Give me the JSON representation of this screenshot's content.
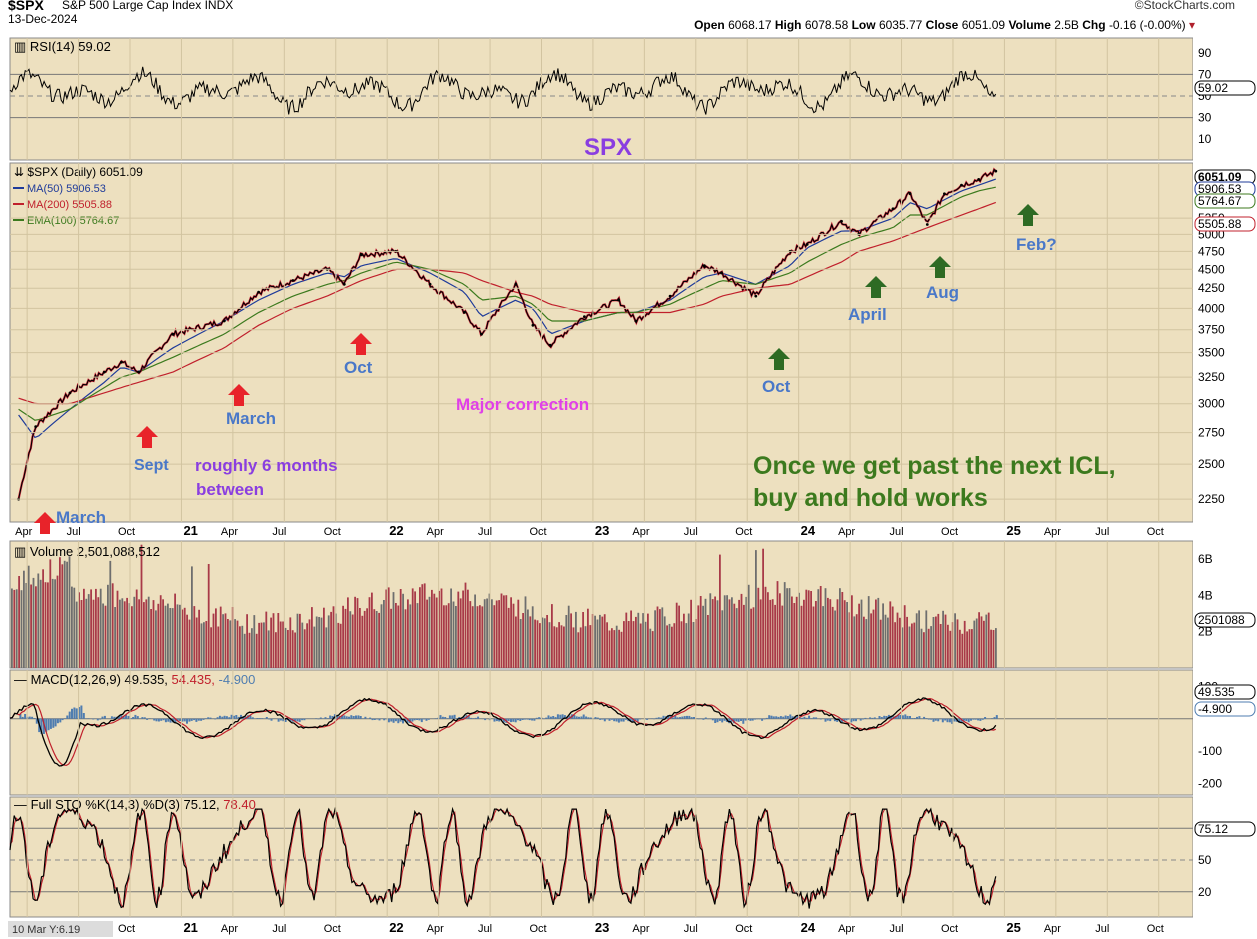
{
  "header": {
    "symbol": "$SPX",
    "name": "S&P 500 Large Cap Index",
    "exchange": "INDX",
    "date": "13-Dec-2024",
    "brand": "©StockCharts.com",
    "open_label": "Open",
    "open": "6068.17",
    "high_label": "High",
    "high": "6078.58",
    "low_label": "Low",
    "low": "6035.77",
    "close_label": "Close",
    "close": "6051.09",
    "volume_label": "Volume",
    "volume": "2.5B",
    "chg_label": "Chg",
    "chg": "-0.16 (-0.00%)"
  },
  "colors": {
    "panel_bg": "#ede0bf",
    "price_up": "#000000",
    "price_down": "#d0102a",
    "ma50": "#1f3b9a",
    "ma200": "#c0202c",
    "ema100": "#3c7a1e",
    "volume_up": "#a83a48",
    "volume_down": "#6e6e6e",
    "arrow_red": "#e8232a",
    "arrow_green": "#2e6b24",
    "label_blue": "#4a78c8",
    "label_purple": "#8a3ee0",
    "label_magenta": "#e040e8",
    "label_green": "#3c7a1e"
  },
  "legends": {
    "rsi": "RSI(14) 59.02",
    "price": "$SPX (Daily) 6051.09",
    "ma50": "MA(50) 5906.53",
    "ma200": "MA(200) 5505.88",
    "ema100": "EMA(100) 5764.67",
    "volume": "Volume 2,501,088,512",
    "macd_prefix": "MACD(12,26,9) 49.535,",
    "macd_signal": "54.435,",
    "macd_hist": "-4.900",
    "sto_prefix": "Full STO %K(14,3) %D(3) 75.12,",
    "sto_d": "78.40"
  },
  "right_axis": {
    "rsi": [
      "90",
      "70",
      "50",
      "30",
      "10"
    ],
    "rsi_value": "59.02",
    "price": [
      "5250",
      "5000",
      "4750",
      "4500",
      "4250",
      "4000",
      "3750",
      "3500",
      "3250",
      "3000",
      "2750",
      "2500",
      "2250"
    ],
    "price_close": "6051.09",
    "price_ma50": "5906.53",
    "price_ema100": "5764.67",
    "price_ma200": "5505.88",
    "volume": [
      "6B",
      "4B",
      "2B"
    ],
    "volume_value": "2501088",
    "macd": [
      "100",
      "-100",
      "-200"
    ],
    "macd_value": "49.535",
    "macd_hist_value": "-4.900",
    "sto": [
      "50",
      "20"
    ],
    "sto_value": "75.12"
  },
  "time_axis": [
    "Apr",
    "Jul",
    "Oct",
    "21",
    "Apr",
    "Jul",
    "Oct",
    "22",
    "Apr",
    "Jul",
    "Oct",
    "23",
    "Apr",
    "Jul",
    "Oct",
    "24",
    "Apr",
    "Jul",
    "Oct",
    "25",
    "Apr",
    "Jul",
    "Oct"
  ],
  "bottom_time_axis": [
    "Oct",
    "21",
    "Apr",
    "Jul",
    "Oct",
    "22",
    "Apr",
    "Jul",
    "Oct",
    "23",
    "Apr",
    "Jul",
    "Oct",
    "24",
    "Apr",
    "Jul",
    "Oct",
    "25",
    "Apr",
    "Jul",
    "Oct"
  ],
  "cursor_readout": "10 Mar Y:6.19",
  "annotations": {
    "title": "SPX",
    "march_2020": "March",
    "sept": "Sept",
    "march_2021": "March",
    "oct_2021": "Oct",
    "major_correction": "Major correction",
    "oct_2023": "Oct",
    "april": "April",
    "aug": "Aug",
    "feb": "Feb?",
    "six_months_1": "roughly 6 months",
    "six_months_2": "between",
    "icl_1": "Once we get past the next ICL,",
    "icl_2": "buy and hold works"
  },
  "chart_data": {
    "type": "line",
    "title": "$SPX (Daily)",
    "x": [
      "2020-03",
      "2020-04",
      "2020-06",
      "2020-08",
      "2020-09",
      "2020-10",
      "2020-12",
      "2021-03",
      "2021-05",
      "2021-07",
      "2021-09",
      "2021-10",
      "2021-11",
      "2022-01",
      "2022-03",
      "2022-05",
      "2022-06",
      "2022-08",
      "2022-09",
      "2022-10",
      "2022-12",
      "2023-02",
      "2023-03",
      "2023-05",
      "2023-07",
      "2023-08",
      "2023-10",
      "2023-12",
      "2024-01",
      "2024-03",
      "2024-04",
      "2024-06",
      "2024-07",
      "2024-08",
      "2024-09",
      "2024-10",
      "2024-11",
      "2024-12"
    ],
    "series": [
      {
        "name": "$SPX",
        "values": [
          2250,
          2800,
          3100,
          3300,
          3400,
          3300,
          3700,
          3850,
          4200,
          4350,
          4500,
          4300,
          4700,
          4750,
          4300,
          3950,
          3700,
          4300,
          3800,
          3580,
          3900,
          4100,
          3850,
          4150,
          4550,
          4450,
          4150,
          4750,
          4850,
          5200,
          5000,
          5400,
          5650,
          5150,
          5650,
          5800,
          5900,
          6051
        ]
      },
      {
        "name": "MA(50)",
        "values": [
          2900,
          2700,
          2950,
          3200,
          3350,
          3300,
          3550,
          3850,
          4100,
          4300,
          4450,
          4400,
          4550,
          4650,
          4450,
          4200,
          3900,
          4100,
          4000,
          3700,
          3850,
          3950,
          3950,
          4100,
          4400,
          4450,
          4300,
          4550,
          4800,
          5050,
          5050,
          5250,
          5500,
          5400,
          5550,
          5700,
          5800,
          5906
        ]
      },
      {
        "name": "MA(200)",
        "values": [
          3050,
          3000,
          3000,
          3100,
          3150,
          3200,
          3300,
          3550,
          3800,
          4000,
          4150,
          4250,
          4350,
          4500,
          4500,
          4450,
          4350,
          4200,
          4150,
          4050,
          3950,
          3950,
          3950,
          3950,
          4050,
          4150,
          4250,
          4300,
          4400,
          4600,
          4750,
          4900,
          5000,
          5100,
          5200,
          5300,
          5400,
          5505
        ]
      },
      {
        "name": "EMA(100)",
        "values": [
          2950,
          2850,
          2950,
          3150,
          3250,
          3300,
          3450,
          3700,
          3950,
          4150,
          4300,
          4350,
          4450,
          4600,
          4500,
          4300,
          4100,
          4150,
          4050,
          3850,
          3850,
          3950,
          3950,
          4050,
          4250,
          4350,
          4300,
          4450,
          4600,
          4850,
          4950,
          5100,
          5300,
          5300,
          5450,
          5600,
          5700,
          5764
        ]
      }
    ],
    "ylim": [
      2100,
      6200
    ],
    "y_scale": "log",
    "grid": true,
    "legend_placement": "top-left"
  }
}
